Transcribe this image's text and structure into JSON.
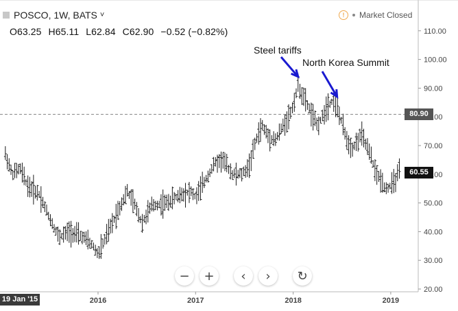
{
  "header": {
    "symbol_line": "POSCO, 1W, BATS",
    "chevron": "˅",
    "ohlc": {
      "open": "O63.25",
      "high": "H65.11",
      "low": "L62.84",
      "close": "C62.90",
      "change": "−0.52 (−0.82%)"
    },
    "market_status": "Market Closed"
  },
  "price_tags": {
    "crosshair_price": "80.90",
    "last_price": "60.55"
  },
  "time_axis": {
    "cursor_date": "19 Jan '15"
  },
  "controls": {
    "zoom_out": "−",
    "zoom_in": "+",
    "scroll_left": "‹",
    "scroll_right": "›",
    "reset": "↻"
  },
  "annotations": [
    {
      "label": "Steel tariffs",
      "target_date": "2018.05",
      "target_price": 94
    },
    {
      "label": "North Korea Summit",
      "target_date": "2018.45",
      "target_price": 87
    }
  ],
  "chart_data": {
    "type": "ohlc",
    "interval": "1W",
    "y_axis_ticks": [
      "110.00",
      "100.00",
      "90.00",
      "80.00",
      "70.00",
      "60.00",
      "50.00",
      "40.00",
      "30.00",
      "20.00"
    ],
    "x_axis_ticks": [
      "2016",
      "2017",
      "2018",
      "2019"
    ],
    "ylim": [
      20,
      110
    ],
    "xlim": [
      2015.05,
      2019.15
    ],
    "crosshair_price": 80.9,
    "last_price": 60.55,
    "colors": {
      "bars": "#1a1a1a",
      "arrow": "#1a1ad0",
      "last_price_tag": "#111111",
      "crosshair_tag": "#555555"
    },
    "anchors": [
      [
        2015.05,
        67
      ],
      [
        2015.12,
        60
      ],
      [
        2015.2,
        62
      ],
      [
        2015.28,
        56
      ],
      [
        2015.4,
        53
      ],
      [
        2015.5,
        45
      ],
      [
        2015.6,
        38
      ],
      [
        2015.7,
        40
      ],
      [
        2015.85,
        38
      ],
      [
        2015.95,
        35
      ],
      [
        2016.0,
        32
      ],
      [
        2016.08,
        38
      ],
      [
        2016.2,
        47
      ],
      [
        2016.3,
        54
      ],
      [
        2016.38,
        49
      ],
      [
        2016.45,
        43
      ],
      [
        2016.55,
        49
      ],
      [
        2016.7,
        50
      ],
      [
        2016.85,
        53
      ],
      [
        2016.95,
        54
      ],
      [
        2017.0,
        52
      ],
      [
        2017.1,
        58
      ],
      [
        2017.2,
        64
      ],
      [
        2017.28,
        65
      ],
      [
        2017.38,
        60
      ],
      [
        2017.48,
        60
      ],
      [
        2017.55,
        63
      ],
      [
        2017.62,
        72
      ],
      [
        2017.68,
        77
      ],
      [
        2017.75,
        73
      ],
      [
        2017.82,
        72
      ],
      [
        2017.9,
        77
      ],
      [
        2017.97,
        81
      ],
      [
        2018.0,
        84
      ],
      [
        2018.05,
        91
      ],
      [
        2018.1,
        87
      ],
      [
        2018.15,
        84
      ],
      [
        2018.2,
        80
      ],
      [
        2018.25,
        77
      ],
      [
        2018.3,
        80
      ],
      [
        2018.35,
        84
      ],
      [
        2018.42,
        86
      ],
      [
        2018.48,
        80
      ],
      [
        2018.55,
        72
      ],
      [
        2018.6,
        69
      ],
      [
        2018.65,
        71
      ],
      [
        2018.7,
        74
      ],
      [
        2018.75,
        70
      ],
      [
        2018.8,
        66
      ],
      [
        2018.85,
        60
      ],
      [
        2018.9,
        58
      ],
      [
        2018.95,
        55
      ],
      [
        2019.0,
        56
      ],
      [
        2019.05,
        58
      ],
      [
        2019.08,
        61
      ],
      [
        2019.1,
        61
      ]
    ]
  }
}
